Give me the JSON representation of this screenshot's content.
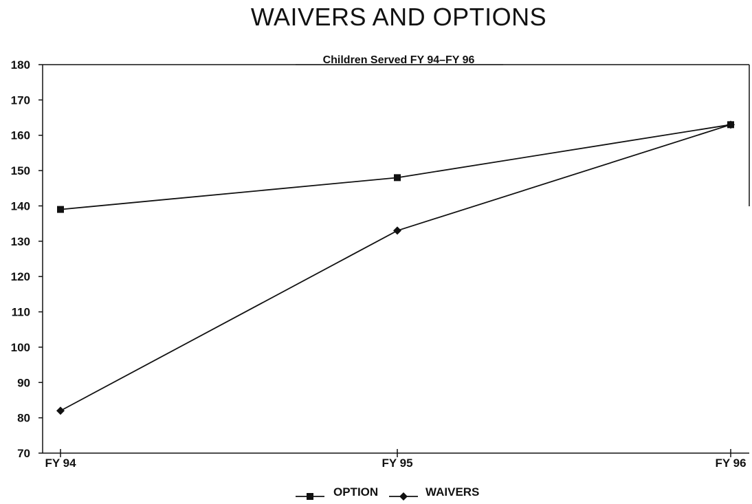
{
  "chart_data": {
    "type": "line",
    "title": "WAIVERS AND OPTIONS",
    "subtitle": "Children Served  FY 94–FY 96",
    "categories": [
      "FY 94",
      "FY 95",
      "FY 96"
    ],
    "ylim": [
      70,
      180
    ],
    "yticks": [
      70,
      80,
      90,
      100,
      110,
      120,
      130,
      140,
      150,
      160,
      170,
      180
    ],
    "grid": false,
    "legend_position": "bottom",
    "series": [
      {
        "name": "OPTION",
        "marker": "square",
        "values": [
          139,
          148,
          163
        ],
        "color": "#111111"
      },
      {
        "name": "WAIVERS",
        "marker": "diamond",
        "values": [
          82,
          133,
          163
        ],
        "color": "#111111"
      }
    ]
  }
}
